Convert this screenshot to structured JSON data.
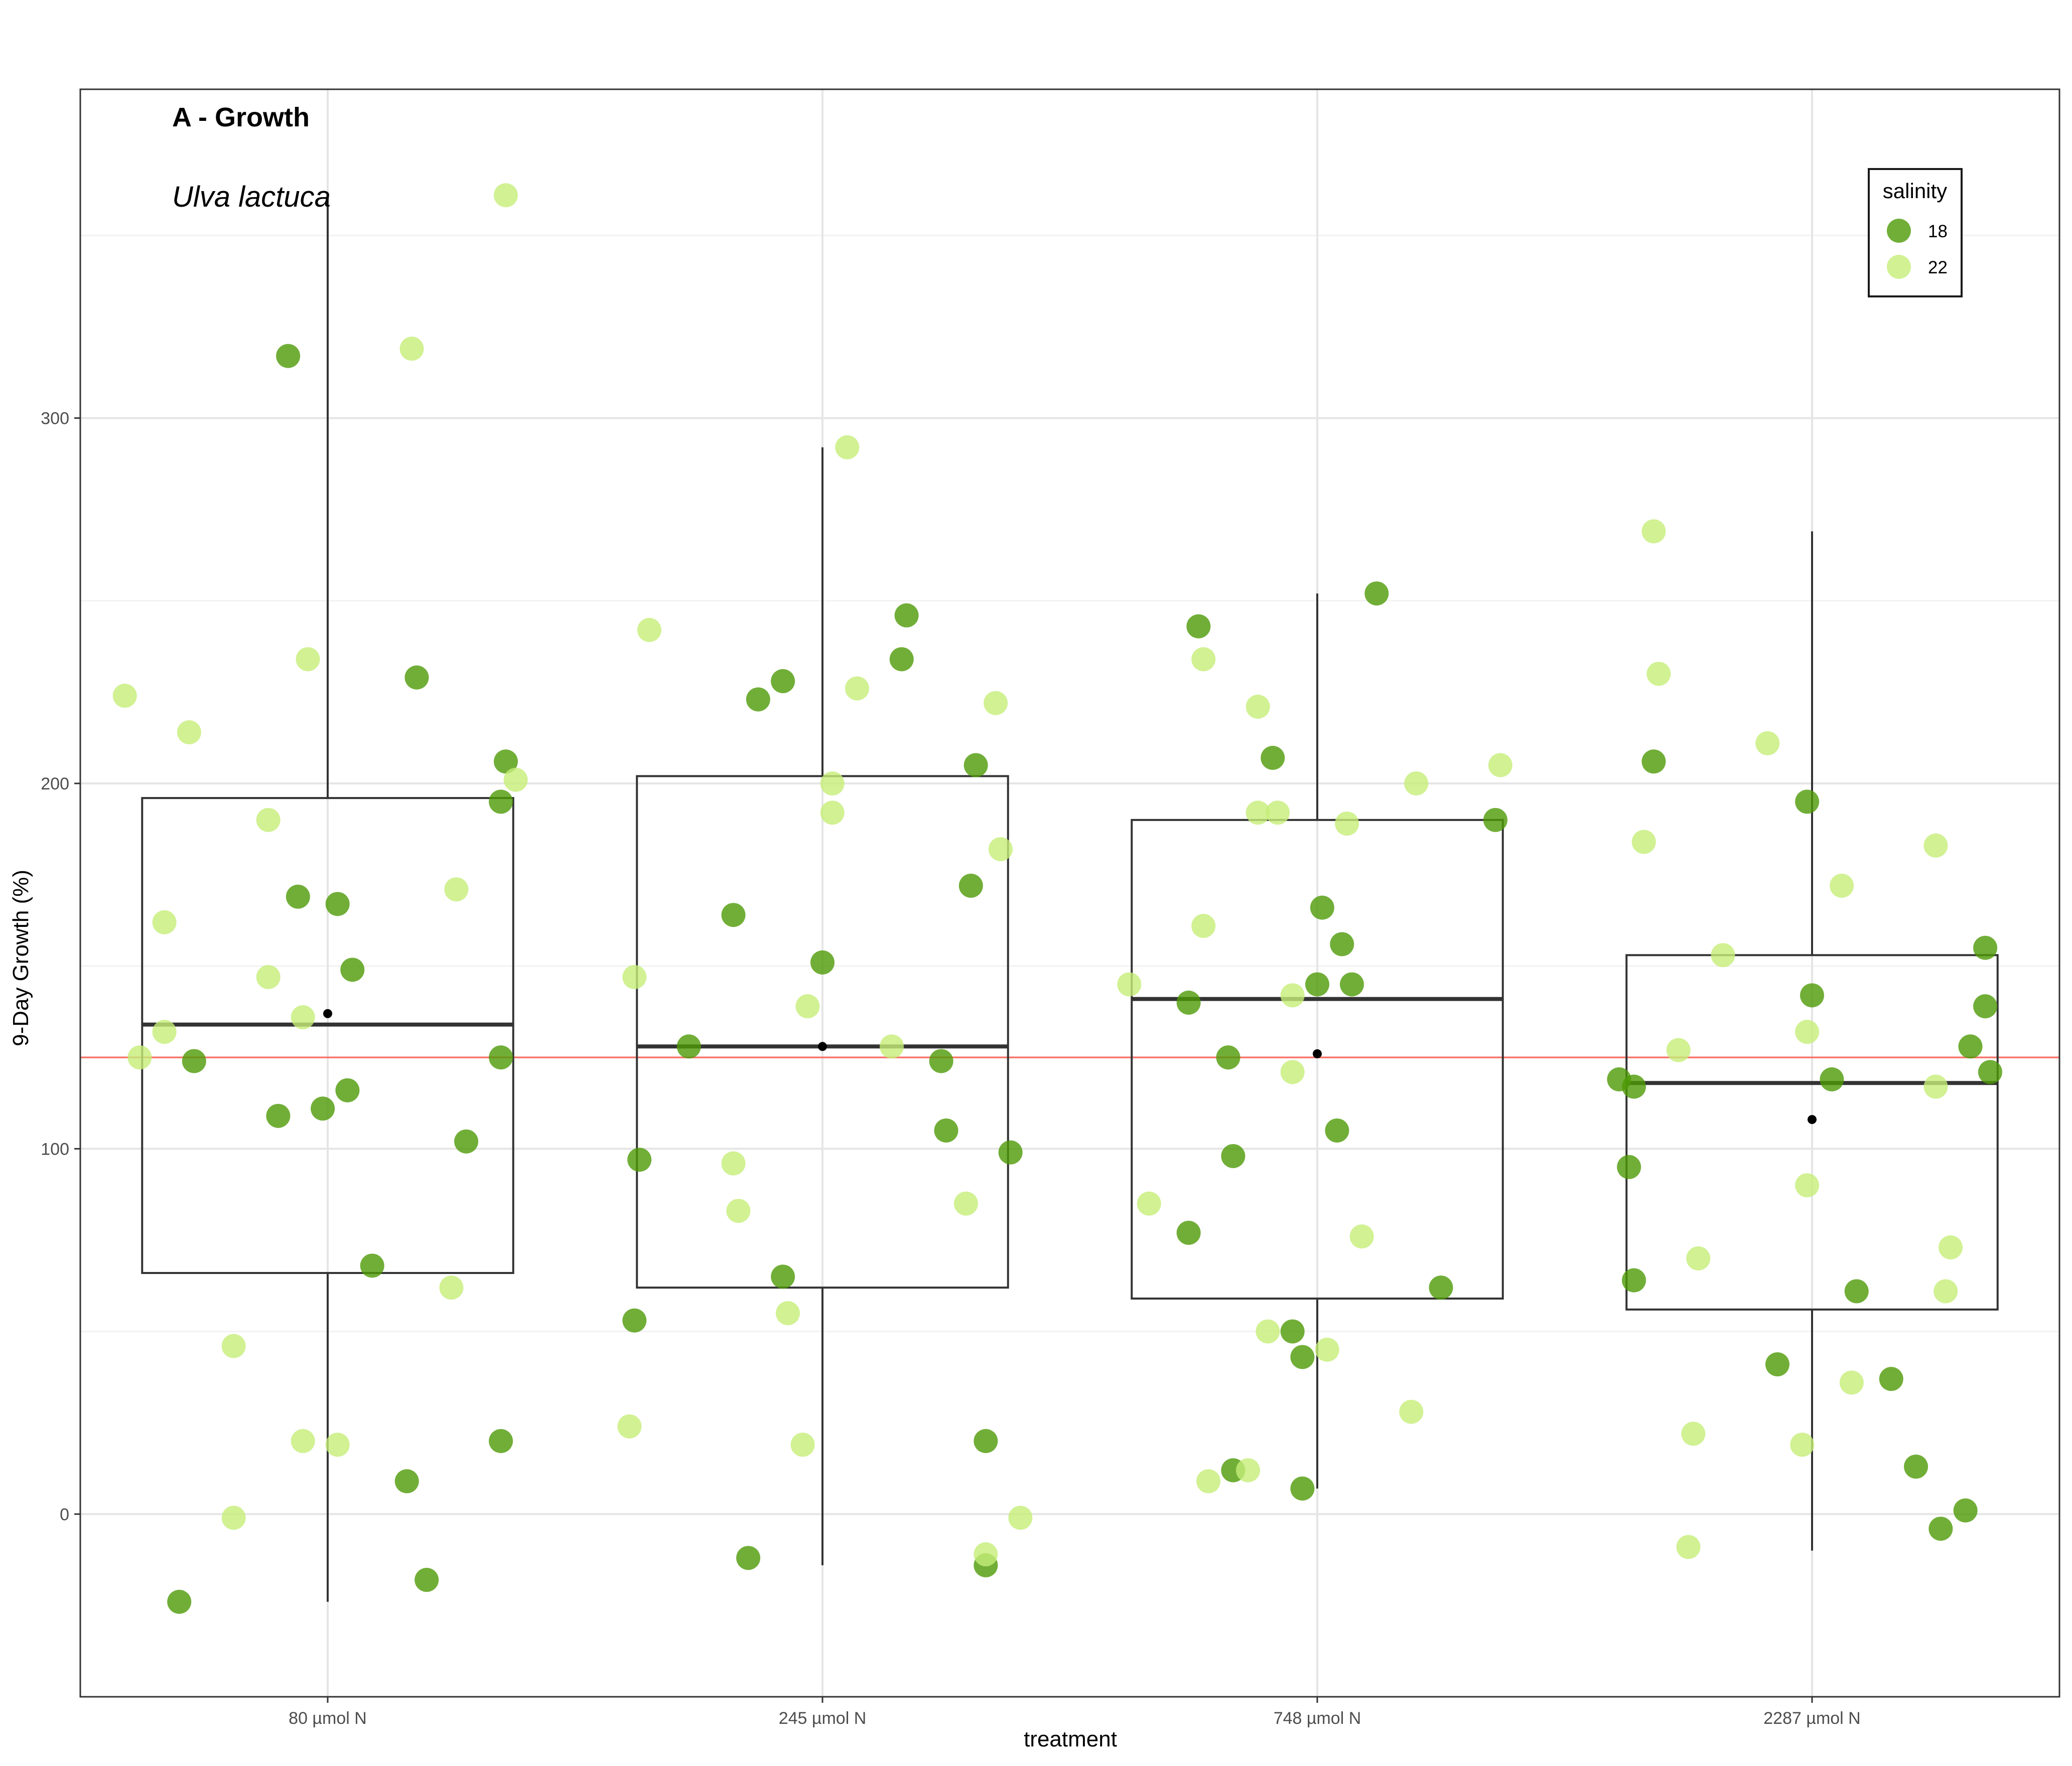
{
  "chart_data": {
    "type": "box+scatter",
    "title": "A - Growth",
    "subtitle": "Ulva lactuca",
    "xlabel": "treatment",
    "ylabel": "9-Day Growth (%)",
    "categories": [
      "80 µmol N",
      "245 µmol N",
      "748 µmol N",
      "2287 µmol N"
    ],
    "ylim": [
      -50,
      390
    ],
    "yticks": [
      0,
      100,
      200,
      300
    ],
    "grid": true,
    "reference_line": {
      "y": 125,
      "color": "#f8766d"
    },
    "legend": {
      "title": "salinity",
      "position": "top-right",
      "entries": [
        {
          "label": "18",
          "color": "#4e9a06"
        },
        {
          "label": "22",
          "color": "#c5ee78"
        }
      ]
    },
    "boxes": [
      {
        "category": "80 µmol N",
        "whisker_low": -24,
        "q1": 66,
        "median": 134,
        "q3": 196,
        "whisker_high": 361,
        "mean": 137
      },
      {
        "category": "245 µmol N",
        "whisker_low": -14,
        "q1": 62,
        "median": 128,
        "q3": 202,
        "whisker_high": 292,
        "mean": 128
      },
      {
        "category": "748 µmol N",
        "whisker_low": 7,
        "q1": 59,
        "median": 141,
        "q3": 190,
        "whisker_high": 252,
        "mean": 126
      },
      {
        "category": "2287 µmol N",
        "whisker_low": -10,
        "q1": 56,
        "median": 118,
        "q3": 153,
        "whisker_high": 269,
        "mean": 108
      }
    ],
    "series": [
      {
        "name": "18",
        "points": [
          [
            0,
            317
          ],
          [
            0,
            229
          ],
          [
            0,
            206
          ],
          [
            0,
            195
          ],
          [
            0,
            169
          ],
          [
            0,
            167
          ],
          [
            0,
            149
          ],
          [
            0,
            125
          ],
          [
            0,
            124
          ],
          [
            0,
            116
          ],
          [
            0,
            111
          ],
          [
            0,
            109
          ],
          [
            0,
            102
          ],
          [
            0,
            68
          ],
          [
            0,
            20
          ],
          [
            0,
            9
          ],
          [
            0,
            -18
          ],
          [
            0,
            -24
          ],
          [
            1,
            246
          ],
          [
            1,
            234
          ],
          [
            1,
            228
          ],
          [
            1,
            223
          ],
          [
            1,
            205
          ],
          [
            1,
            172
          ],
          [
            1,
            164
          ],
          [
            1,
            151
          ],
          [
            1,
            128
          ],
          [
            1,
            124
          ],
          [
            1,
            105
          ],
          [
            1,
            99
          ],
          [
            1,
            97
          ],
          [
            1,
            65
          ],
          [
            1,
            53
          ],
          [
            1,
            20
          ],
          [
            1,
            -12
          ],
          [
            1,
            -14
          ],
          [
            2,
            252
          ],
          [
            2,
            243
          ],
          [
            2,
            207
          ],
          [
            2,
            190
          ],
          [
            2,
            166
          ],
          [
            2,
            156
          ],
          [
            2,
            145
          ],
          [
            2,
            145
          ],
          [
            2,
            140
          ],
          [
            2,
            125
          ],
          [
            2,
            105
          ],
          [
            2,
            98
          ],
          [
            2,
            77
          ],
          [
            2,
            62
          ],
          [
            2,
            50
          ],
          [
            2,
            43
          ],
          [
            2,
            12
          ],
          [
            2,
            7
          ],
          [
            3,
            206
          ],
          [
            3,
            195
          ],
          [
            3,
            155
          ],
          [
            3,
            142
          ],
          [
            3,
            139
          ],
          [
            3,
            128
          ],
          [
            3,
            121
          ],
          [
            3,
            119
          ],
          [
            3,
            119
          ],
          [
            3,
            117
          ],
          [
            3,
            95
          ],
          [
            3,
            64
          ],
          [
            3,
            61
          ],
          [
            3,
            41
          ],
          [
            3,
            37
          ],
          [
            3,
            13
          ],
          [
            3,
            1
          ],
          [
            3,
            -4
          ]
        ]
      },
      {
        "name": "22",
        "points": [
          [
            0,
            361
          ],
          [
            0,
            319
          ],
          [
            0,
            234
          ],
          [
            0,
            224
          ],
          [
            0,
            214
          ],
          [
            0,
            201
          ],
          [
            0,
            190
          ],
          [
            0,
            171
          ],
          [
            0,
            162
          ],
          [
            0,
            147
          ],
          [
            0,
            136
          ],
          [
            0,
            132
          ],
          [
            0,
            125
          ],
          [
            0,
            62
          ],
          [
            0,
            46
          ],
          [
            0,
            20
          ],
          [
            0,
            19
          ],
          [
            0,
            -1
          ],
          [
            1,
            292
          ],
          [
            1,
            242
          ],
          [
            1,
            226
          ],
          [
            1,
            222
          ],
          [
            1,
            200
          ],
          [
            1,
            192
          ],
          [
            1,
            182
          ],
          [
            1,
            147
          ],
          [
            1,
            139
          ],
          [
            1,
            128
          ],
          [
            1,
            96
          ],
          [
            1,
            85
          ],
          [
            1,
            83
          ],
          [
            1,
            55
          ],
          [
            1,
            24
          ],
          [
            1,
            19
          ],
          [
            1,
            -11
          ],
          [
            1,
            -1
          ],
          [
            2,
            234
          ],
          [
            2,
            221
          ],
          [
            2,
            205
          ],
          [
            2,
            200
          ],
          [
            2,
            192
          ],
          [
            2,
            192
          ],
          [
            2,
            189
          ],
          [
            2,
            161
          ],
          [
            2,
            145
          ],
          [
            2,
            142
          ],
          [
            2,
            121
          ],
          [
            2,
            85
          ],
          [
            2,
            76
          ],
          [
            2,
            50
          ],
          [
            2,
            45
          ],
          [
            2,
            28
          ],
          [
            2,
            12
          ],
          [
            2,
            9
          ],
          [
            3,
            269
          ],
          [
            3,
            230
          ],
          [
            3,
            211
          ],
          [
            3,
            184
          ],
          [
            3,
            183
          ],
          [
            3,
            172
          ],
          [
            3,
            153
          ],
          [
            3,
            132
          ],
          [
            3,
            127
          ],
          [
            3,
            117
          ],
          [
            3,
            90
          ],
          [
            3,
            73
          ],
          [
            3,
            70
          ],
          [
            3,
            61
          ],
          [
            3,
            36
          ],
          [
            3,
            22
          ],
          [
            3,
            19
          ],
          [
            3,
            -9
          ]
        ]
      }
    ],
    "x_offsets_fraction": [
      [
        -0.08,
        0.18,
        0.36,
        0.35,
        -0.06,
        0.02,
        0.05,
        0.35,
        -0.27,
        0.04,
        -0.01,
        -0.1,
        0.28,
        0.09,
        0.35,
        0.16,
        0.2,
        -0.3,
        0.17,
        0.16,
        -0.08,
        -0.13,
        0.31,
        0.3,
        -0.18,
        0.0,
        -0.27,
        0.24,
        0.25,
        0.38,
        -0.37,
        -0.08,
        -0.38,
        0.33,
        -0.15,
        0.33,
        0.12,
        -0.24,
        -0.09,
        0.36,
        0.01,
        0.05,
        0.0,
        0.07,
        -0.26,
        -0.18,
        0.04,
        -0.17,
        -0.26,
        0.25,
        -0.05,
        -0.03,
        -0.17,
        -0.03,
        -0.32,
        -0.01,
        0.35,
        0.0,
        0.35,
        0.32,
        0.36,
        0.04,
        -0.39,
        -0.36,
        -0.37,
        -0.36,
        0.09,
        -0.07,
        0.16,
        0.21,
        0.31,
        0.26
      ],
      [
        0.36,
        0.17,
        -0.04,
        -0.41,
        -0.28,
        0.38,
        -0.12,
        0.26,
        -0.33,
        -0.12,
        -0.05,
        -0.33,
        -0.38,
        0.25,
        -0.19,
        -0.05,
        0.02,
        -0.19,
        0.05,
        -0.35,
        0.07,
        0.35,
        0.02,
        0.02,
        0.36,
        -0.38,
        -0.03,
        0.14,
        -0.18,
        0.29,
        -0.17,
        -0.07,
        -0.39,
        -0.04,
        0.33,
        0.4,
        -0.23,
        -0.12,
        0.37,
        0.2,
        -0.12,
        -0.08,
        0.06,
        -0.23,
        -0.38,
        -0.05,
        -0.05,
        -0.34,
        0.09,
        -0.1,
        0.02,
        0.19,
        -0.14,
        -0.22,
        -0.32,
        -0.31,
        -0.09,
        -0.34,
        0.25,
        0.06,
        -0.18,
        -0.01,
        -0.27,
        0.25,
        -0.01,
        0.28,
        -0.23,
        0.27,
        0.08,
        -0.24,
        -0.02,
        -0.25
      ]
    ]
  }
}
